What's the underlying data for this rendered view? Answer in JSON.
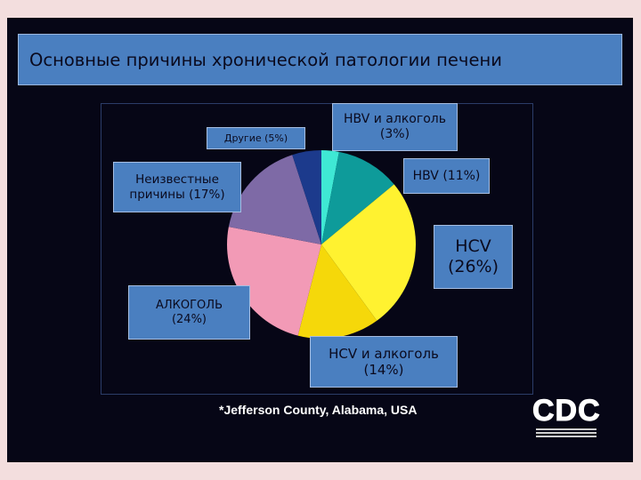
{
  "title": "Основные причины хронической патологии печени",
  "footnote": "*Jefferson County, Alabama, USA",
  "logo": "CDC",
  "chart_data": {
    "type": "pie",
    "title": "Основные причины хронической патологии печени",
    "slices": [
      {
        "label_line1": "HBV и алкоголь",
        "label_line2": "(3%)",
        "value": 3,
        "color": "#3fe8d4"
      },
      {
        "label_line1": "HBV (11%)",
        "label_line2": "",
        "value": 11,
        "color": "#0e9b9a"
      },
      {
        "label_line1": "HCV",
        "label_line2": "(26%)",
        "value": 26,
        "color": "#fff230"
      },
      {
        "label_line1": "HCV и алкоголь",
        "label_line2": "(14%)",
        "value": 14,
        "color": "#f5d80a"
      },
      {
        "label_line1": "АЛКОГОЛЬ",
        "label_line2": "(24%)",
        "value": 24,
        "color": "#f29ab6"
      },
      {
        "label_line1": "Неизвестные",
        "label_line2": "причины (17%)",
        "value": 17,
        "color": "#7e6aa6"
      },
      {
        "label_line1": "Другие (5%)",
        "label_line2": "",
        "value": 5,
        "color": "#1c3a8c"
      }
    ]
  }
}
